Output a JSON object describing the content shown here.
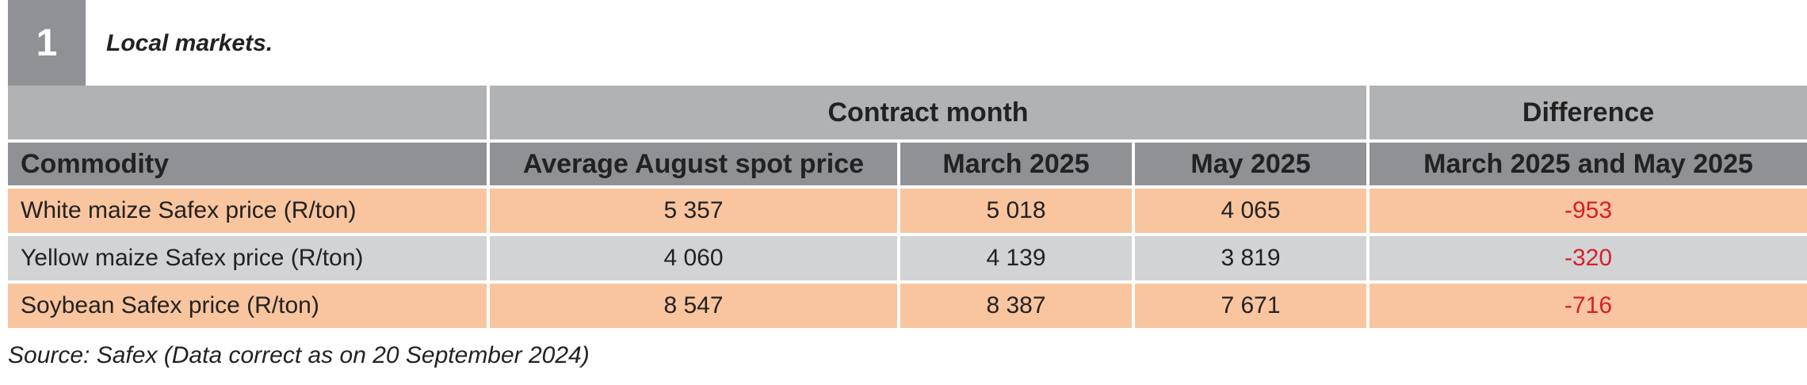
{
  "table": {
    "number": "1",
    "title": "Local markets."
  },
  "header": {
    "group_blank": "",
    "group_contract": "Contract month",
    "group_difference": "Difference",
    "columns": [
      "Commodity",
      "Average August spot price",
      "March 2025",
      "May 2025",
      "March 2025 and May 2025"
    ]
  },
  "rows": [
    {
      "commodity": "White maize Safex price (R/ton)",
      "spot": "5 357",
      "march": "5 018",
      "may": "4 065",
      "difference": "-953",
      "shade": "orange"
    },
    {
      "commodity": "Yellow maize Safex price (R/ton)",
      "spot": "4 060",
      "march": "4 139",
      "may": "3 819",
      "difference": "-320",
      "shade": "grey"
    },
    {
      "commodity": "Soybean Safex price (R/ton)",
      "spot": "8 547",
      "march": "8 387",
      "may": "7 671",
      "difference": "-716",
      "shade": "orange"
    }
  ],
  "source": "Source: Safex (Data correct as on 20 September 2024)",
  "colors": {
    "header_dark": "#8f9194",
    "header_light": "#b1b2b4",
    "row_orange": "#f9c59f",
    "row_grey": "#d2d3d5",
    "negative": "#d62027"
  }
}
